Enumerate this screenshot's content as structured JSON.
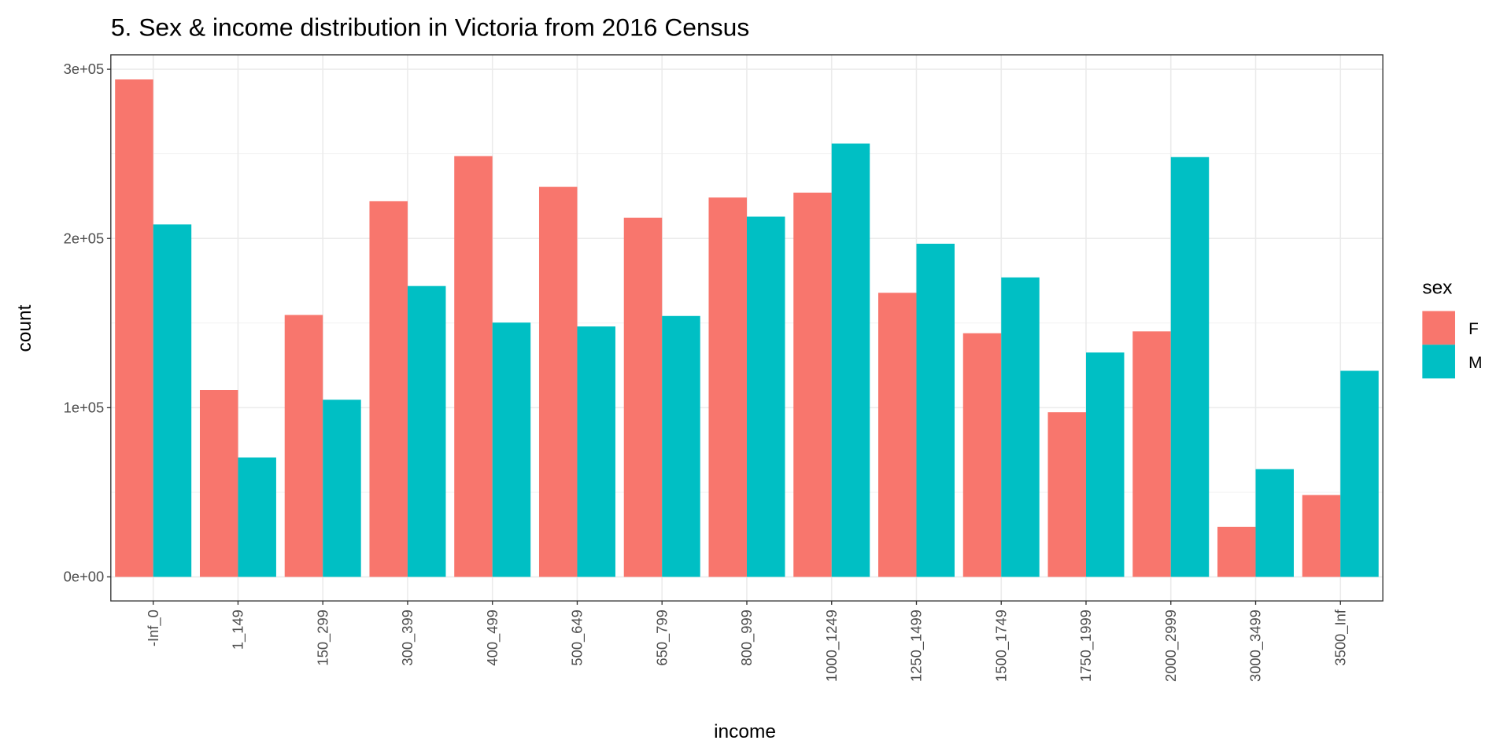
{
  "chart_data": {
    "type": "bar",
    "title": "5. Sex & income distribution in Victoria from 2016 Census",
    "xlabel": "income",
    "ylabel": "count",
    "ylim": [
      -14200,
      308500
    ],
    "yticks": [
      0,
      100000,
      200000,
      300000
    ],
    "ytick_labels": [
      "0e+00",
      "1e+05",
      "2e+05",
      "3e+05"
    ],
    "grid": true,
    "legend": {
      "title": "sex",
      "placement": "right",
      "entries": [
        "F",
        "M"
      ]
    },
    "categories": [
      "-Inf_0",
      "1_149",
      "150_299",
      "300_399",
      "400_499",
      "500_649",
      "650_799",
      "800_999",
      "1000_1249",
      "1250_1499",
      "1500_1749",
      "1750_1999",
      "2000_2999",
      "3000_3499",
      "3500_Inf"
    ],
    "series": [
      {
        "name": "F",
        "color": "#F8766D",
        "values": [
          294000,
          110400,
          154800,
          222000,
          248700,
          230500,
          212300,
          224200,
          227100,
          167900,
          144000,
          97300,
          145100,
          29600,
          48400
        ]
      },
      {
        "name": "M",
        "color": "#00BFC4",
        "values": [
          208300,
          70600,
          104700,
          171900,
          150300,
          148000,
          154200,
          212900,
          256100,
          196900,
          177000,
          132600,
          248100,
          63700,
          121800
        ]
      }
    ]
  }
}
